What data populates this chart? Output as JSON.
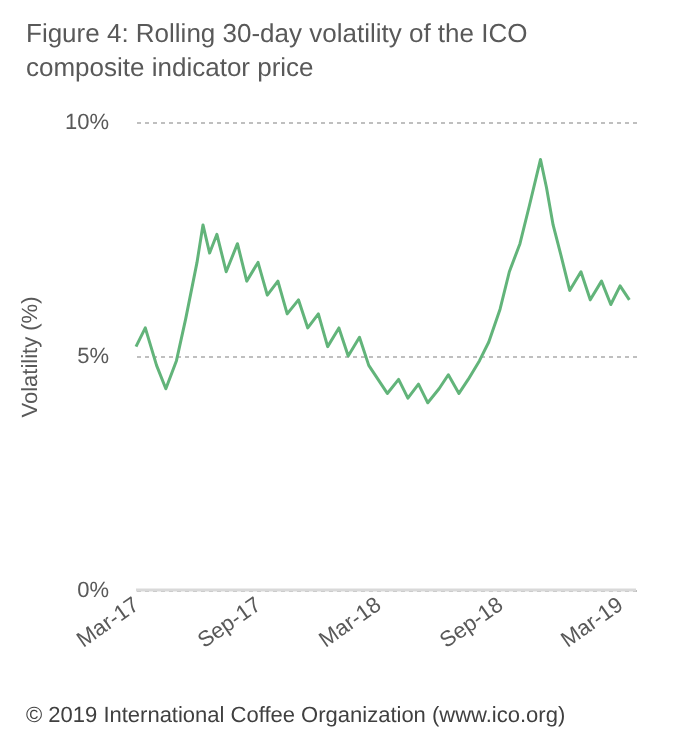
{
  "chart_data": {
    "type": "line",
    "title": "Figure 4:    Rolling 30-day volatility of the ICO composite indicator price",
    "ylabel": "Volatility (%)",
    "annotations": [
      "© 2019 International Coffee Organization (www.ico.org)"
    ],
    "x": [
      "2017-03-01",
      "2017-03-15",
      "2017-04-01",
      "2017-04-15",
      "2017-05-01",
      "2017-05-15",
      "2017-06-01",
      "2017-06-10",
      "2017-06-20",
      "2017-07-01",
      "2017-07-15",
      "2017-08-01",
      "2017-08-15",
      "2017-09-01",
      "2017-09-15",
      "2017-10-01",
      "2017-10-15",
      "2017-11-01",
      "2017-11-15",
      "2017-12-01",
      "2017-12-15",
      "2018-01-01",
      "2018-01-15",
      "2018-02-01",
      "2018-02-15",
      "2018-03-01",
      "2018-03-15",
      "2018-04-01",
      "2018-04-15",
      "2018-05-01",
      "2018-05-15",
      "2018-06-01",
      "2018-06-15",
      "2018-07-01",
      "2018-07-15",
      "2018-08-01",
      "2018-08-15",
      "2018-09-01",
      "2018-09-15",
      "2018-10-01",
      "2018-10-15",
      "2018-11-01",
      "2018-11-10",
      "2018-11-20",
      "2018-12-01",
      "2018-12-15",
      "2019-01-01",
      "2019-01-15",
      "2019-02-01",
      "2019-02-15",
      "2019-03-01",
      "2019-03-15"
    ],
    "series": [
      {
        "color": "#62b47a",
        "values": [
          5.2,
          5.6,
          4.8,
          4.3,
          4.9,
          5.8,
          7.0,
          7.8,
          7.2,
          7.6,
          6.8,
          7.4,
          6.6,
          7.0,
          6.3,
          6.6,
          5.9,
          6.2,
          5.6,
          5.9,
          5.2,
          5.6,
          5.0,
          5.4,
          4.8,
          4.5,
          4.2,
          4.5,
          4.1,
          4.4,
          4.0,
          4.3,
          4.6,
          4.2,
          4.5,
          4.9,
          5.3,
          6.0,
          6.8,
          7.4,
          8.2,
          9.2,
          8.6,
          7.8,
          7.2,
          6.4,
          6.8,
          6.2,
          6.6,
          6.1,
          6.5,
          6.2
        ]
      }
    ],
    "xlim": [
      "2017-03-01",
      "2019-03-25"
    ],
    "xticks": [
      {
        "value": "2017-03-01",
        "label": "Mar-17"
      },
      {
        "value": "2017-09-01",
        "label": "Sep-17"
      },
      {
        "value": "2018-03-01",
        "label": "Mar-18"
      },
      {
        "value": "2018-09-01",
        "label": "Sep-18"
      },
      {
        "value": "2019-03-01",
        "label": "Mar-19"
      }
    ],
    "ylim": [
      0,
      10
    ],
    "yticks": [
      {
        "value": 0,
        "label": "0%"
      },
      {
        "value": 5,
        "label": "5%"
      },
      {
        "value": 10,
        "label": "10%"
      }
    ],
    "grid": "y",
    "marker": "none",
    "line_style": "solid"
  }
}
